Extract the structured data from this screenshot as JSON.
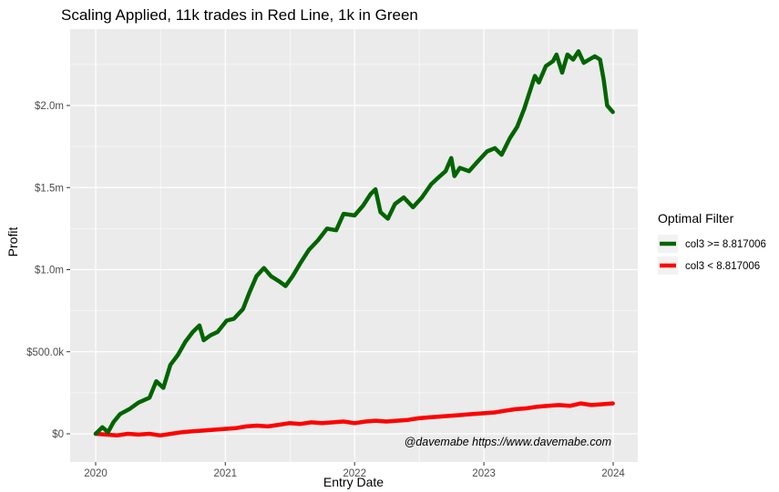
{
  "chart_data": {
    "type": "line",
    "title": "Scaling Applied, 11k trades in Red Line, 1k in Green",
    "xlabel": "Entry Date",
    "ylabel": "Profit",
    "x_ticks": [
      "2020",
      "2021",
      "2022",
      "2023",
      "2024"
    ],
    "x_range": [
      "2020-01-01",
      "2024-01-01"
    ],
    "y_ticks": [
      "$0",
      "$500.0k",
      "$1.0m",
      "$1.5m",
      "$2.0m"
    ],
    "y_tick_values": [
      0,
      500000,
      1000000,
      1500000,
      2000000
    ],
    "ylim": [
      -50000,
      2400000
    ],
    "grid": true,
    "legend": {
      "title": "Optimal Filter",
      "placement": "right"
    },
    "annotation": "@davemabe https://www.davemabe.com",
    "series": [
      {
        "name": "col3 >= 8.817006",
        "color": "#006400",
        "points": [
          [
            "2020-01-01",
            0
          ],
          [
            "2020-01-20",
            40000
          ],
          [
            "2020-02-05",
            10000
          ],
          [
            "2020-02-20",
            70000
          ],
          [
            "2020-03-10",
            120000
          ],
          [
            "2020-04-05",
            150000
          ],
          [
            "2020-05-01",
            190000
          ],
          [
            "2020-06-01",
            220000
          ],
          [
            "2020-06-20",
            320000
          ],
          [
            "2020-07-10",
            280000
          ],
          [
            "2020-07-30",
            420000
          ],
          [
            "2020-08-20",
            480000
          ],
          [
            "2020-09-10",
            560000
          ],
          [
            "2020-10-01",
            620000
          ],
          [
            "2020-10-20",
            660000
          ],
          [
            "2020-11-01",
            570000
          ],
          [
            "2020-11-20",
            600000
          ],
          [
            "2020-12-10",
            620000
          ],
          [
            "2021-01-05",
            690000
          ],
          [
            "2021-01-25",
            700000
          ],
          [
            "2021-02-20",
            760000
          ],
          [
            "2021-03-10",
            860000
          ],
          [
            "2021-03-30",
            960000
          ],
          [
            "2021-04-20",
            1010000
          ],
          [
            "2021-05-10",
            960000
          ],
          [
            "2021-06-01",
            930000
          ],
          [
            "2021-06-20",
            900000
          ],
          [
            "2021-07-10",
            960000
          ],
          [
            "2021-08-01",
            1040000
          ],
          [
            "2021-08-25",
            1120000
          ],
          [
            "2021-09-20",
            1180000
          ],
          [
            "2021-10-15",
            1250000
          ],
          [
            "2021-11-10",
            1240000
          ],
          [
            "2021-12-01",
            1340000
          ],
          [
            "2022-01-01",
            1330000
          ],
          [
            "2022-01-25",
            1390000
          ],
          [
            "2022-02-15",
            1460000
          ],
          [
            "2022-03-01",
            1490000
          ],
          [
            "2022-03-15",
            1350000
          ],
          [
            "2022-04-05",
            1310000
          ],
          [
            "2022-04-25",
            1400000
          ],
          [
            "2022-05-20",
            1440000
          ],
          [
            "2022-06-15",
            1380000
          ],
          [
            "2022-07-10",
            1440000
          ],
          [
            "2022-08-05",
            1520000
          ],
          [
            "2022-08-25",
            1560000
          ],
          [
            "2022-09-15",
            1600000
          ],
          [
            "2022-10-01",
            1680000
          ],
          [
            "2022-10-10",
            1570000
          ],
          [
            "2022-10-25",
            1620000
          ],
          [
            "2022-11-20",
            1600000
          ],
          [
            "2022-12-15",
            1660000
          ],
          [
            "2023-01-10",
            1720000
          ],
          [
            "2023-02-01",
            1740000
          ],
          [
            "2023-02-20",
            1700000
          ],
          [
            "2023-03-15",
            1800000
          ],
          [
            "2023-04-05",
            1870000
          ],
          [
            "2023-04-25",
            1980000
          ],
          [
            "2023-05-10",
            2080000
          ],
          [
            "2023-05-25",
            2180000
          ],
          [
            "2023-06-05",
            2140000
          ],
          [
            "2023-06-25",
            2240000
          ],
          [
            "2023-07-15",
            2270000
          ],
          [
            "2023-07-25",
            2310000
          ],
          [
            "2023-08-10",
            2200000
          ],
          [
            "2023-08-25",
            2310000
          ],
          [
            "2023-09-10",
            2280000
          ],
          [
            "2023-09-25",
            2330000
          ],
          [
            "2023-10-10",
            2260000
          ],
          [
            "2023-10-25",
            2280000
          ],
          [
            "2023-11-10",
            2300000
          ],
          [
            "2023-11-25",
            2280000
          ],
          [
            "2023-12-05",
            2160000
          ],
          [
            "2023-12-15",
            2000000
          ],
          [
            "2023-12-31",
            1960000
          ]
        ]
      },
      {
        "name": "col3 < 8.817006",
        "color": "#ff0000",
        "points": [
          [
            "2020-01-01",
            0
          ],
          [
            "2020-02-01",
            -5000
          ],
          [
            "2020-03-01",
            -10000
          ],
          [
            "2020-04-01",
            0
          ],
          [
            "2020-05-01",
            -5000
          ],
          [
            "2020-06-01",
            0
          ],
          [
            "2020-07-01",
            -10000
          ],
          [
            "2020-08-01",
            0
          ],
          [
            "2020-09-01",
            10000
          ],
          [
            "2020-10-01",
            15000
          ],
          [
            "2020-11-01",
            20000
          ],
          [
            "2020-12-01",
            25000
          ],
          [
            "2021-01-01",
            30000
          ],
          [
            "2021-02-01",
            35000
          ],
          [
            "2021-03-01",
            45000
          ],
          [
            "2021-04-01",
            50000
          ],
          [
            "2021-05-01",
            45000
          ],
          [
            "2021-06-01",
            55000
          ],
          [
            "2021-07-01",
            65000
          ],
          [
            "2021-08-01",
            60000
          ],
          [
            "2021-09-01",
            70000
          ],
          [
            "2021-10-01",
            65000
          ],
          [
            "2021-11-01",
            70000
          ],
          [
            "2021-12-01",
            75000
          ],
          [
            "2022-01-01",
            65000
          ],
          [
            "2022-02-01",
            75000
          ],
          [
            "2022-03-01",
            80000
          ],
          [
            "2022-04-01",
            75000
          ],
          [
            "2022-05-01",
            80000
          ],
          [
            "2022-06-01",
            85000
          ],
          [
            "2022-07-01",
            95000
          ],
          [
            "2022-08-01",
            100000
          ],
          [
            "2022-09-01",
            105000
          ],
          [
            "2022-10-01",
            110000
          ],
          [
            "2022-11-01",
            115000
          ],
          [
            "2022-12-01",
            120000
          ],
          [
            "2023-01-01",
            125000
          ],
          [
            "2023-02-01",
            130000
          ],
          [
            "2023-03-01",
            140000
          ],
          [
            "2023-04-01",
            150000
          ],
          [
            "2023-05-01",
            155000
          ],
          [
            "2023-06-01",
            165000
          ],
          [
            "2023-07-01",
            170000
          ],
          [
            "2023-08-01",
            175000
          ],
          [
            "2023-09-01",
            170000
          ],
          [
            "2023-10-01",
            185000
          ],
          [
            "2023-11-01",
            175000
          ],
          [
            "2023-12-01",
            180000
          ],
          [
            "2023-12-31",
            185000
          ]
        ]
      }
    ]
  }
}
